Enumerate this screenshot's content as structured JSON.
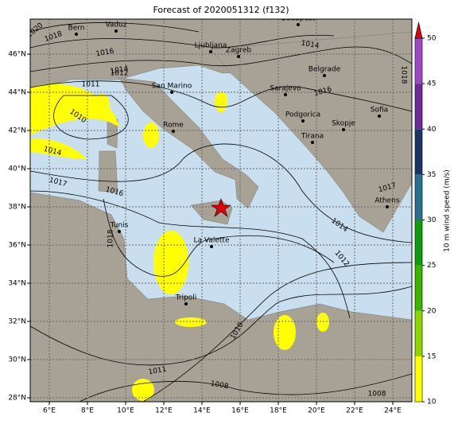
{
  "title": "Forecast of 2020051312 (f132)",
  "lon_labels": [
    "6°E",
    "8°E",
    "10°E",
    "12°E",
    "14°E",
    "16°E",
    "18°E",
    "20°E",
    "22°E",
    "24°E"
  ],
  "lat_labels": [
    "46°N",
    "44°N",
    "42°N",
    "40°N",
    "38°N",
    "36°N",
    "34°N",
    "32°N",
    "30°N",
    "28°N"
  ],
  "cities": [
    "Bern",
    "Vaduz",
    "Budapest",
    "Ljubljana",
    "Zagreb",
    "Belgrade",
    "San Marino",
    "Sarajevo",
    "Podgorica",
    "Sofia",
    "Skopje",
    "Rome",
    "Tirana",
    "Athens",
    "Tunis",
    "La Valette",
    "Tripoli"
  ],
  "isobar_labels": [
    "1020",
    "1018",
    "1016",
    "1014",
    "1012",
    "1011",
    "1010",
    "1014",
    "1017",
    "1016",
    "1014",
    "1016",
    "1018",
    "1017",
    "1014",
    "1012",
    "1018",
    "1010",
    "1011",
    "1008",
    "1008"
  ],
  "colorbar": {
    "label": "10 m wind speed (m/s)",
    "ticks": [
      10,
      15,
      20,
      25,
      30,
      35,
      40,
      45,
      50
    ],
    "colors": [
      "#ffff00",
      "#8fd400",
      "#3cb300",
      "#0f9a0f",
      "#2a6f8c",
      "#1c3463",
      "#6c2b99",
      "#9c47c4"
    ],
    "extend_color": "#e00000"
  }
}
